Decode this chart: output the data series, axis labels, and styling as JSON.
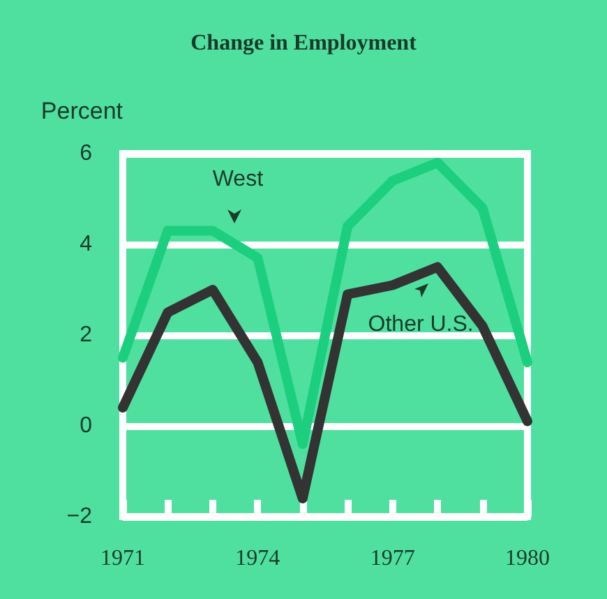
{
  "chart_data": {
    "type": "line",
    "title": "Change in Employment",
    "ylabel": "Percent",
    "x": [
      1971,
      1972,
      1973,
      1974,
      1975,
      1976,
      1977,
      1978,
      1979,
      1980
    ],
    "series": [
      {
        "name": "West",
        "color": "#1ccf7f",
        "values": [
          1.5,
          4.3,
          4.3,
          3.7,
          -0.4,
          4.4,
          5.4,
          5.8,
          4.8,
          1.4
        ]
      },
      {
        "name": "Other U.S.",
        "color": "#333333",
        "values": [
          0.4,
          2.5,
          3.0,
          1.4,
          -1.6,
          2.9,
          3.1,
          3.5,
          2.2,
          0.1
        ]
      }
    ],
    "xlim": [
      1971,
      1980
    ],
    "xticks": [
      1971,
      {
        "value": 1972,
        "label": null
      },
      {
        "value": 1973,
        "label": null
      },
      1974,
      {
        "value": 1975,
        "label": null
      },
      {
        "value": 1976,
        "label": null
      },
      1977,
      {
        "value": 1978,
        "label": null
      },
      {
        "value": 1979,
        "label": null
      },
      1980
    ],
    "ylim": [
      -2,
      6
    ],
    "yticks": [
      -2,
      0,
      2,
      4,
      6
    ],
    "grid": "y",
    "legend": false,
    "marker": "none",
    "line_style": "solid"
  }
}
